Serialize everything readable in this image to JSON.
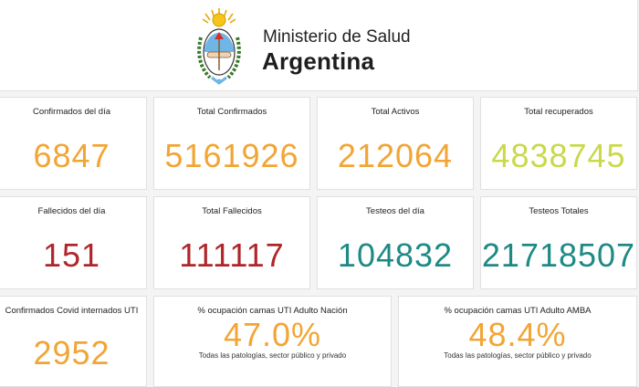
{
  "header": {
    "ministry": "Ministerio de Salud",
    "country": "Argentina"
  },
  "colors": {
    "orange": "#f2a535",
    "lime": "#c9d94a",
    "red": "#b0252a",
    "teal": "#1e8a84"
  },
  "stats": [
    {
      "label": "Confirmados del día",
      "value": "6847"
    },
    {
      "label": "Total Confirmados",
      "value": "5161926"
    },
    {
      "label": "Total Activos",
      "value": "212064"
    },
    {
      "label": "Total recuperados",
      "value": "4838745"
    },
    {
      "label": "Fallecidos del día",
      "value": "151"
    },
    {
      "label": "Total Fallecidos",
      "value": "111117"
    },
    {
      "label": "Testeos del día",
      "value": "104832"
    },
    {
      "label": "Testeos Totales",
      "value": "21718507"
    },
    {
      "label": "Confirmados Covid internados UTI",
      "value": "2952"
    },
    {
      "label": "% ocupación camas UTI Adulto Nación",
      "value": "47.0%",
      "note": "Todas las patologías, sector público y privado"
    },
    {
      "label": "% ocupación camas UTI Adulto AMBA",
      "value": "48.4%",
      "note": "Todas las patologías, sector público y privado"
    }
  ]
}
